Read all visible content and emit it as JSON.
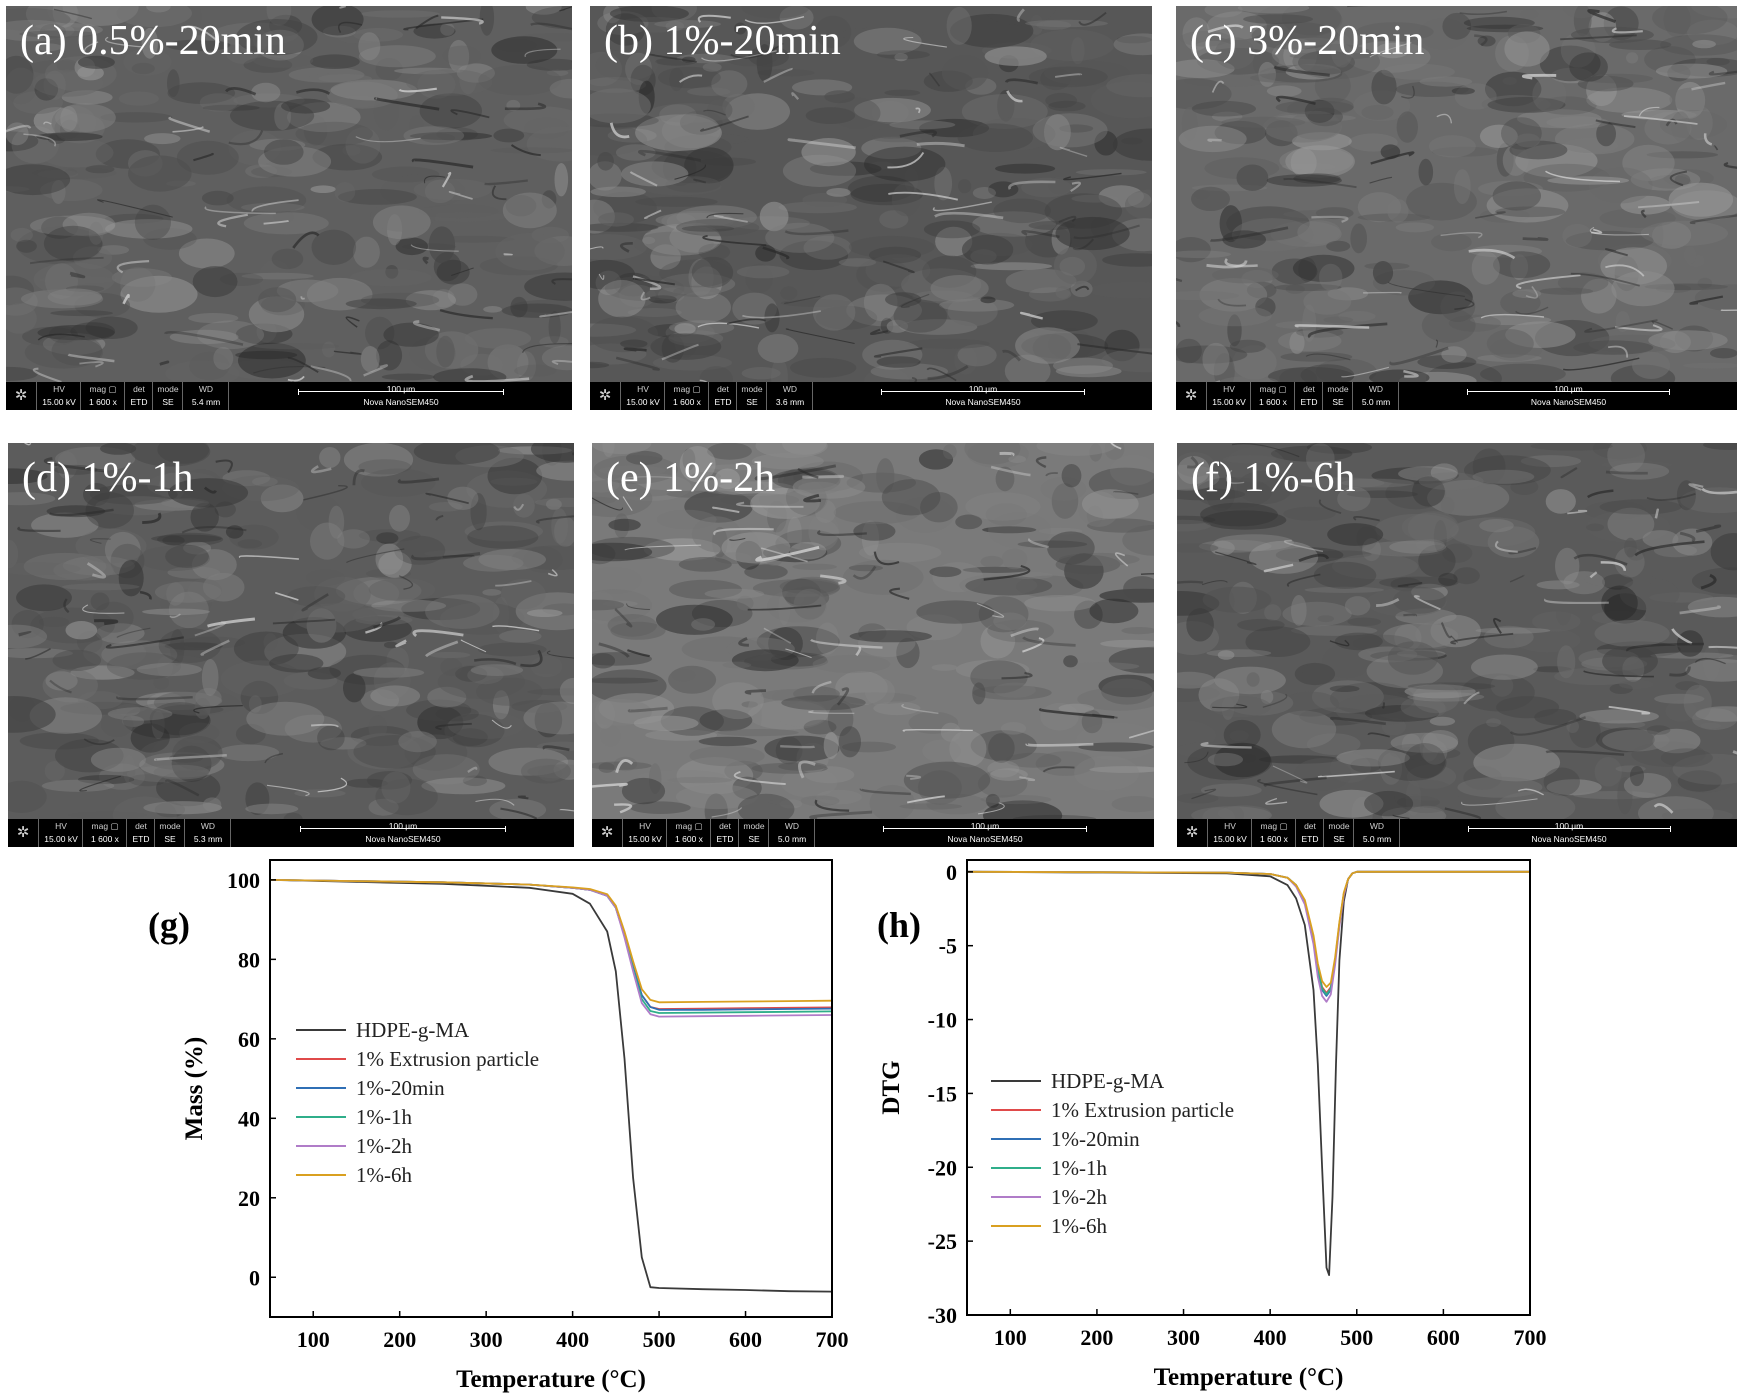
{
  "sem_panels": [
    {
      "label": "(a) 0.5%-20min",
      "hv": "15.00 kV",
      "mag": "1 600 x",
      "det": "ETD",
      "mode": "SE",
      "wd": "5.4 mm",
      "scale": "100 µm",
      "instrument": "Nova NanoSEM450",
      "tone": "#5f5f5f"
    },
    {
      "label": "(b) 1%-20min",
      "hv": "15.00 kV",
      "mag": "1 600 x",
      "det": "ETD",
      "mode": "SE",
      "wd": "3.6 mm",
      "scale": "100 µm",
      "instrument": "Nova NanoSEM450",
      "tone": "#575757"
    },
    {
      "label": "(c) 3%-20min",
      "hv": "15.00 kV",
      "mag": "1 600 x",
      "det": "ETD",
      "mode": "SE",
      "wd": "5.0 mm",
      "scale": "100 µm",
      "instrument": "Nova NanoSEM450",
      "tone": "#6a6a6a"
    },
    {
      "label": "(d) 1%-1h",
      "hv": "15.00 kV",
      "mag": "1 600 x",
      "det": "ETD",
      "mode": "SE",
      "wd": "5.3 mm",
      "scale": "100 µm",
      "instrument": "Nova NanoSEM450",
      "tone": "#5c5c5c"
    },
    {
      "label": "(e) 1%-2h",
      "hv": "15.00 kV",
      "mag": "1 600 x",
      "det": "ETD",
      "mode": "SE",
      "wd": "5.0 mm",
      "scale": "100 µm",
      "instrument": "Nova NanoSEM450",
      "tone": "#7a7a7a"
    },
    {
      "label": "(f) 1%-6h",
      "hv": "15.00 kV",
      "mag": "1 600 x",
      "det": "ETD",
      "mode": "SE",
      "wd": "5.0 mm",
      "scale": "100 µm",
      "instrument": "Nova NanoSEM450",
      "tone": "#5a5a5a"
    }
  ],
  "sem_bar_keys": {
    "hv": "HV",
    "mag": "mag ▢",
    "det": "det",
    "mode": "mode",
    "wd": "WD"
  },
  "chart_data": [
    {
      "type": "line",
      "panel_letter": "(g)",
      "xlabel": "Temperature (°C)",
      "ylabel": "Mass (%)",
      "xlim": [
        50,
        700
      ],
      "ylim": [
        -10,
        105
      ],
      "xticks": [
        100,
        200,
        300,
        400,
        500,
        600,
        700
      ],
      "yticks": [
        0,
        20,
        40,
        60,
        80,
        100
      ],
      "legend_position": "left-middle",
      "grid": false,
      "series": [
        {
          "name": "HDPE-g-MA",
          "color": "#3a3a3a",
          "x": [
            50,
            150,
            250,
            350,
            400,
            420,
            440,
            450,
            460,
            470,
            480,
            490,
            500,
            550,
            600,
            650,
            700
          ],
          "y": [
            100,
            99.5,
            99,
            98,
            96.5,
            94,
            87,
            77,
            55,
            25,
            5,
            -2.5,
            -2.7,
            -3,
            -3.2,
            -3.5,
            -3.6
          ]
        },
        {
          "name": "1% Extrusion particle",
          "color": "#e04a4a",
          "x": [
            50,
            150,
            250,
            350,
            400,
            420,
            440,
            450,
            460,
            470,
            480,
            490,
            500,
            550,
            600,
            650,
            700
          ],
          "y": [
            100,
            99.7,
            99.4,
            98.8,
            98,
            97.5,
            96,
            93,
            86,
            78,
            71,
            68,
            67.5,
            67.6,
            67.7,
            67.8,
            67.9
          ]
        },
        {
          "name": "1%-20min",
          "color": "#2f6fb5",
          "x": [
            50,
            150,
            250,
            350,
            400,
            420,
            440,
            450,
            460,
            470,
            480,
            490,
            500,
            550,
            600,
            650,
            700
          ],
          "y": [
            100,
            99.7,
            99.4,
            98.8,
            98,
            97.5,
            96,
            93,
            86,
            78,
            71,
            68,
            67.3,
            67.3,
            67.4,
            67.5,
            67.6
          ]
        },
        {
          "name": "1%-1h",
          "color": "#2fae8a",
          "x": [
            50,
            150,
            250,
            350,
            400,
            420,
            440,
            450,
            460,
            470,
            480,
            490,
            500,
            550,
            600,
            650,
            700
          ],
          "y": [
            100,
            99.7,
            99.4,
            98.8,
            98,
            97.5,
            96,
            93,
            86,
            77.5,
            70,
            67,
            66.5,
            66.6,
            66.7,
            66.8,
            66.9
          ]
        },
        {
          "name": "1%-2h",
          "color": "#b07cc8",
          "x": [
            50,
            150,
            250,
            350,
            400,
            420,
            440,
            450,
            460,
            470,
            480,
            490,
            500,
            550,
            600,
            650,
            700
          ],
          "y": [
            100,
            99.7,
            99.4,
            98.8,
            98,
            97.5,
            96,
            93,
            85.5,
            77,
            69,
            66.2,
            65.6,
            65.7,
            65.8,
            65.9,
            66
          ]
        },
        {
          "name": "1%-6h",
          "color": "#d9a020",
          "x": [
            50,
            150,
            250,
            350,
            400,
            420,
            440,
            450,
            460,
            470,
            480,
            490,
            500,
            550,
            600,
            650,
            700
          ],
          "y": [
            100,
            99.7,
            99.4,
            98.8,
            98.1,
            97.7,
            96.4,
            93.5,
            87,
            79.5,
            72.5,
            69.8,
            69.2,
            69.3,
            69.4,
            69.5,
            69.6
          ]
        }
      ]
    },
    {
      "type": "line",
      "panel_letter": "(h)",
      "xlabel": "Temperature (°C)",
      "ylabel": "DTG",
      "xlim": [
        50,
        700
      ],
      "ylim": [
        -30,
        0.8
      ],
      "xticks": [
        100,
        200,
        300,
        400,
        500,
        600,
        700
      ],
      "yticks": [
        0,
        -5,
        -10,
        -15,
        -20,
        -25,
        -30
      ],
      "legend_position": "left-middle",
      "grid": false,
      "series": [
        {
          "name": "HDPE-g-MA",
          "color": "#3a3a3a",
          "x": [
            50,
            350,
            400,
            420,
            430,
            440,
            450,
            455,
            460,
            465,
            468,
            472,
            476,
            480,
            485,
            490,
            495,
            500,
            550,
            700
          ],
          "y": [
            0,
            -0.1,
            -0.3,
            -0.9,
            -1.8,
            -3.6,
            -8,
            -13,
            -20,
            -26.8,
            -27.3,
            -22,
            -13,
            -6,
            -2,
            -0.5,
            -0.1,
            0,
            0,
            0
          ]
        },
        {
          "name": "1% Extrusion particle",
          "color": "#e04a4a",
          "x": [
            50,
            350,
            400,
            420,
            430,
            440,
            450,
            455,
            460,
            465,
            470,
            475,
            480,
            485,
            490,
            495,
            500,
            550,
            700
          ],
          "y": [
            0,
            -0.05,
            -0.15,
            -0.4,
            -0.9,
            -2,
            -4.5,
            -6.5,
            -7.8,
            -8.2,
            -7.8,
            -6,
            -3.5,
            -1.5,
            -0.5,
            -0.1,
            0,
            0,
            0
          ]
        },
        {
          "name": "1%-20min",
          "color": "#2f6fb5",
          "x": [
            50,
            350,
            400,
            420,
            430,
            440,
            450,
            455,
            460,
            465,
            470,
            475,
            480,
            485,
            490,
            495,
            500,
            550,
            700
          ],
          "y": [
            0,
            -0.05,
            -0.15,
            -0.4,
            -0.9,
            -2,
            -4.6,
            -6.7,
            -8,
            -8.4,
            -8,
            -6.1,
            -3.6,
            -1.5,
            -0.5,
            -0.1,
            0,
            0,
            0
          ]
        },
        {
          "name": "1%-1h",
          "color": "#2fae8a",
          "x": [
            50,
            350,
            400,
            420,
            430,
            440,
            450,
            455,
            460,
            465,
            470,
            475,
            480,
            485,
            490,
            495,
            500,
            550,
            700
          ],
          "y": [
            0,
            -0.05,
            -0.15,
            -0.4,
            -0.9,
            -2,
            -4.5,
            -6.6,
            -7.9,
            -8.3,
            -7.9,
            -6,
            -3.5,
            -1.5,
            -0.5,
            -0.1,
            0,
            0,
            0
          ]
        },
        {
          "name": "1%-2h",
          "color": "#b07cc8",
          "x": [
            50,
            350,
            400,
            420,
            430,
            440,
            450,
            455,
            460,
            465,
            470,
            475,
            480,
            485,
            490,
            495,
            500,
            550,
            700
          ],
          "y": [
            0,
            -0.05,
            -0.15,
            -0.4,
            -1,
            -2.2,
            -4.9,
            -7.1,
            -8.4,
            -8.8,
            -8.3,
            -6.3,
            -3.7,
            -1.6,
            -0.5,
            -0.1,
            0,
            0,
            0
          ]
        },
        {
          "name": "1%-6h",
          "color": "#d9a020",
          "x": [
            50,
            350,
            400,
            420,
            430,
            440,
            450,
            455,
            460,
            465,
            470,
            475,
            480,
            485,
            490,
            495,
            500,
            550,
            700
          ],
          "y": [
            0,
            -0.05,
            -0.15,
            -0.4,
            -0.9,
            -1.9,
            -4.3,
            -6.2,
            -7.4,
            -7.8,
            -7.5,
            -5.8,
            -3.4,
            -1.4,
            -0.5,
            -0.1,
            0,
            0,
            0
          ]
        }
      ]
    }
  ]
}
